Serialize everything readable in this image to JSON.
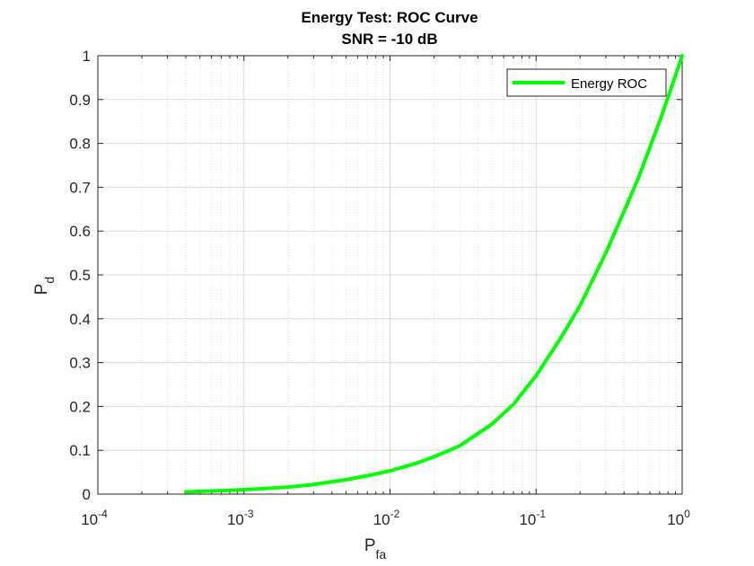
{
  "chart_data": {
    "type": "line",
    "title": "Energy Test: ROC Curve",
    "subtitle": "SNR = -10 dB",
    "xlabel": {
      "main": "P",
      "sub": "fa"
    },
    "ylabel": {
      "main": "P",
      "sub": "d"
    },
    "xscale": "log",
    "xlim": [
      0.0001,
      1
    ],
    "ylim": [
      0,
      1
    ],
    "grid": "on (major and minor)",
    "legend_position": "top-right",
    "x_ticks": [
      {
        "base": "10",
        "exp": "-4",
        "value": 0.0001
      },
      {
        "base": "10",
        "exp": "-3",
        "value": 0.001
      },
      {
        "base": "10",
        "exp": "-2",
        "value": 0.01
      },
      {
        "base": "10",
        "exp": "-1",
        "value": 0.1
      },
      {
        "base": "10",
        "exp": "0",
        "value": 1
      }
    ],
    "y_ticks": [
      "0",
      "0.1",
      "0.2",
      "0.3",
      "0.4",
      "0.5",
      "0.6",
      "0.7",
      "0.8",
      "0.9",
      "1"
    ],
    "series": [
      {
        "name": "Energy ROC",
        "color": "#00ff00",
        "x": [
          0.0004,
          0.0007,
          0.001,
          0.002,
          0.003,
          0.005,
          0.007,
          0.01,
          0.015,
          0.02,
          0.03,
          0.05,
          0.07,
          0.1,
          0.15,
          0.2,
          0.3,
          0.4,
          0.5,
          0.6,
          0.7,
          0.8,
          0.9,
          1.0
        ],
        "y": [
          0.005,
          0.008,
          0.01,
          0.016,
          0.022,
          0.033,
          0.042,
          0.053,
          0.07,
          0.085,
          0.11,
          0.16,
          0.205,
          0.27,
          0.36,
          0.43,
          0.55,
          0.645,
          0.72,
          0.79,
          0.85,
          0.905,
          0.955,
          1.0
        ]
      }
    ]
  }
}
